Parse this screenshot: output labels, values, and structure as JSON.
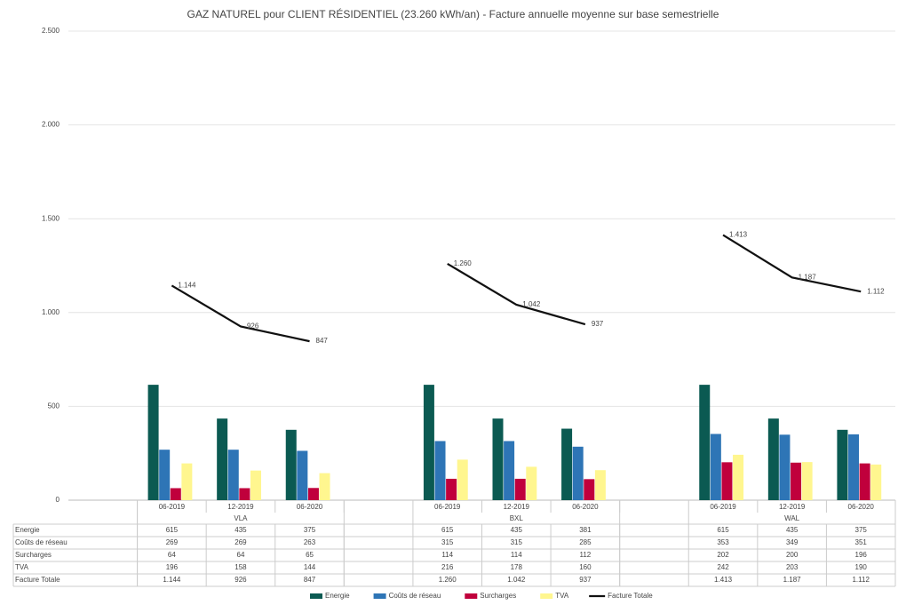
{
  "chart_data": {
    "type": "bar",
    "title": "GAZ NATUREL pour CLIENT RÉSIDENTIEL (23.260 kWh/an) - Facture annuelle moyenne sur base semestrielle",
    "categories": [
      null,
      "06-2019",
      "12-2019",
      "06-2020",
      null,
      "06-2019",
      "12-2019",
      "06-2020",
      null,
      "06-2019",
      "12-2019",
      "06-2020"
    ],
    "groups": [
      "VLA",
      "BXL",
      "WAL"
    ],
    "series": [
      {
        "name": "Energie",
        "type": "bar",
        "color": "#0b5a52",
        "values": [
          null,
          615,
          435,
          375,
          null,
          615,
          435,
          381,
          null,
          615,
          435,
          375
        ]
      },
      {
        "name": "Coûts de réseau",
        "type": "bar",
        "color": "#2e75b6",
        "values": [
          null,
          269,
          269,
          263,
          null,
          315,
          315,
          285,
          null,
          353,
          349,
          351
        ]
      },
      {
        "name": "Surcharges",
        "type": "bar",
        "color": "#c0003c",
        "values": [
          null,
          64,
          64,
          65,
          null,
          114,
          114,
          112,
          null,
          202,
          200,
          196
        ]
      },
      {
        "name": "TVA",
        "type": "bar",
        "color": "#fff68f",
        "values": [
          null,
          196,
          158,
          144,
          null,
          216,
          178,
          160,
          null,
          242,
          203,
          190
        ]
      },
      {
        "name": "Facture Totale",
        "type": "line",
        "color": "#111111",
        "values": [
          null,
          1144,
          926,
          847,
          null,
          1260,
          1042,
          937,
          null,
          1413,
          1187,
          1112
        ],
        "value_labels": [
          null,
          "1.144",
          "926",
          "847",
          null,
          "1.260",
          "1.042",
          "937",
          null,
          "1.413",
          "1.187",
          "1.112"
        ]
      }
    ],
    "ylim": [
      0,
      2500
    ],
    "yticks": [
      0,
      500,
      {
        "value": 1000,
        "label": "1.000"
      },
      {
        "value": 1500,
        "label": "1.500"
      },
      {
        "value": 2000,
        "label": "2.000"
      },
      {
        "value": 2500,
        "label": "2.500"
      }
    ],
    "grid": true,
    "legend": "bottom",
    "data_table": true
  }
}
